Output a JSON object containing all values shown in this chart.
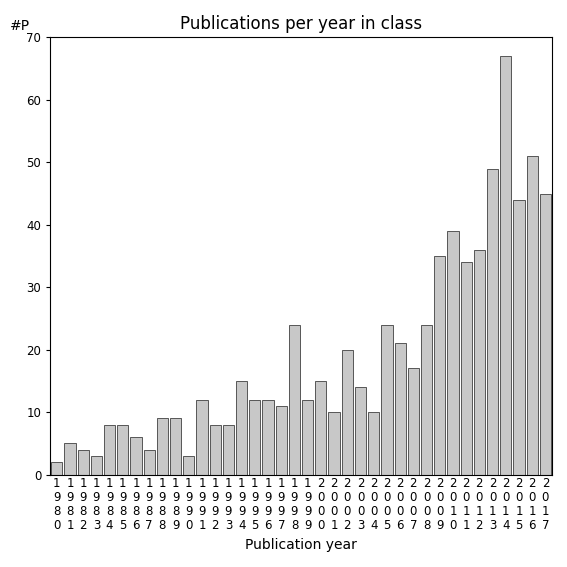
{
  "title": "Publications per year in class",
  "xlabel": "Publication year",
  "ylabel": "#P",
  "years": [
    "1980",
    "1981",
    "1982",
    "1983",
    "1984",
    "1985",
    "1986",
    "1987",
    "1988",
    "1989",
    "1990",
    "1991",
    "1992",
    "1993",
    "1994",
    "1995",
    "1996",
    "1997",
    "1998",
    "1999",
    "2000",
    "2001",
    "2002",
    "2003",
    "2004",
    "2005",
    "2006",
    "2007",
    "2008",
    "2009",
    "2010",
    "2011",
    "2012",
    "2013",
    "2014",
    "2015",
    "2016",
    "2017"
  ],
  "values": [
    2,
    5,
    4,
    3,
    8,
    8,
    6,
    4,
    9,
    9,
    3,
    12,
    8,
    8,
    15,
    12,
    12,
    11,
    24,
    12,
    15,
    10,
    20,
    14,
    10,
    24,
    21,
    17,
    24,
    35,
    39,
    34,
    36,
    49,
    67,
    44,
    51,
    45
  ],
  "bar_color": "#c8c8c8",
  "bar_edgecolor": "#404040",
  "ylim": [
    0,
    70
  ],
  "yticks": [
    0,
    10,
    20,
    30,
    40,
    50,
    60,
    70
  ],
  "background_color": "#ffffff",
  "title_fontsize": 12,
  "axis_label_fontsize": 10,
  "tick_fontsize": 8.5
}
